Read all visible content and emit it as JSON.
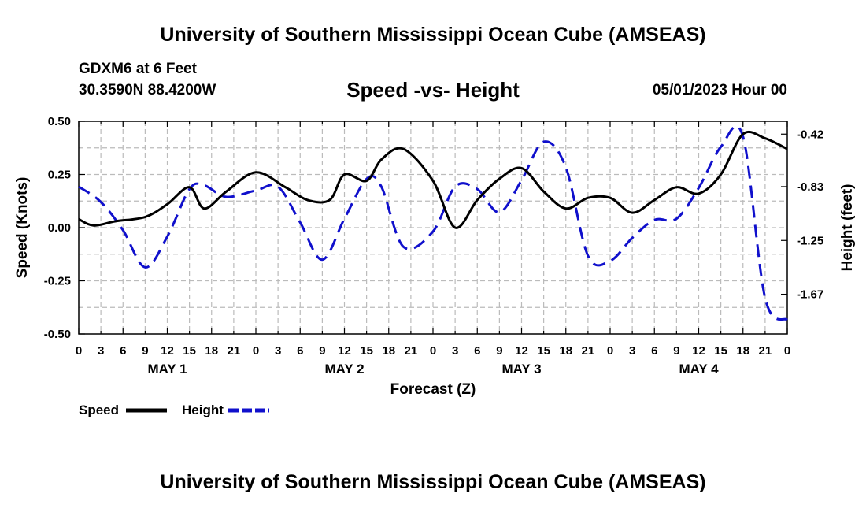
{
  "header": {
    "title": "University of Southern Mississippi Ocean Cube (AMSEAS)",
    "station": "GDXM6 at 6 Feet",
    "coords": "30.3590N  88.4200W",
    "subtitle": "Speed -vs- Height",
    "datetime": "05/01/2023 Hour 00"
  },
  "footer": {
    "title": "University of Southern Mississippi Ocean Cube (AMSEAS)"
  },
  "legend": {
    "speed": "Speed",
    "height": "Height"
  },
  "colors": {
    "speed": "#000000",
    "height": "#1010cc",
    "grid": "#bbbbbb"
  },
  "chart_data": {
    "type": "line",
    "title": "Speed -vs- Height",
    "xlabel": "Forecast (Z)",
    "ylabel": "Speed (Knots)",
    "y2label": "Height (feet)",
    "ylim": [
      -0.5,
      0.5
    ],
    "y2lim": [
      -1.98,
      -0.32
    ],
    "xlim": [
      0,
      96
    ],
    "yticks": [
      "0.50",
      "0.25",
      "0.00",
      "-0.25",
      "-0.50"
    ],
    "y2ticks": [
      "-0.42",
      "-0.83",
      "-1.25",
      "-1.67"
    ],
    "y2tick_values": [
      -0.42,
      -0.83,
      -1.25,
      -1.67
    ],
    "xticks": [
      "0",
      "3",
      "6",
      "9",
      "12",
      "15",
      "18",
      "21",
      "0",
      "3",
      "6",
      "9",
      "12",
      "15",
      "18",
      "21",
      "0",
      "3",
      "6",
      "9",
      "12",
      "15",
      "18",
      "21",
      "0",
      "3",
      "6",
      "9",
      "12",
      "15",
      "18",
      "21",
      "0"
    ],
    "day_labels": [
      "MAY 1",
      "MAY 2",
      "MAY 3",
      "MAY 4"
    ],
    "series": [
      {
        "name": "Speed",
        "axis": "left",
        "style": "solid",
        "x": [
          0,
          2,
          5,
          9,
          12,
          15,
          17,
          20,
          24,
          28,
          31,
          34,
          36,
          39,
          41,
          44,
          48,
          51,
          54,
          57,
          60,
          63,
          66,
          69,
          72,
          75,
          78,
          81,
          84,
          87,
          90,
          93,
          96
        ],
        "y": [
          0.04,
          0.01,
          0.03,
          0.05,
          0.11,
          0.19,
          0.09,
          0.17,
          0.26,
          0.19,
          0.13,
          0.13,
          0.25,
          0.22,
          0.32,
          0.37,
          0.22,
          0.0,
          0.13,
          0.23,
          0.28,
          0.17,
          0.09,
          0.14,
          0.14,
          0.07,
          0.13,
          0.19,
          0.16,
          0.25,
          0.44,
          0.42,
          0.37
        ]
      },
      {
        "name": "Height",
        "axis": "right",
        "style": "dashed",
        "x": [
          0,
          3,
          6,
          9,
          12,
          15,
          17,
          20,
          24,
          27,
          30,
          33,
          36,
          39,
          41,
          44,
          48,
          51,
          54,
          57,
          60,
          63,
          66,
          69,
          72,
          75,
          78,
          81,
          84,
          87,
          90,
          93,
          96
        ],
        "y": [
          -0.83,
          -0.95,
          -1.17,
          -1.46,
          -1.22,
          -0.85,
          -0.82,
          -0.91,
          -0.86,
          -0.83,
          -1.11,
          -1.4,
          -1.08,
          -0.77,
          -0.83,
          -1.3,
          -1.18,
          -0.83,
          -0.85,
          -1.03,
          -0.78,
          -0.48,
          -0.68,
          -1.37,
          -1.41,
          -1.23,
          -1.09,
          -1.08,
          -0.84,
          -0.52,
          -0.44,
          -1.7,
          -1.87
        ]
      }
    ]
  }
}
